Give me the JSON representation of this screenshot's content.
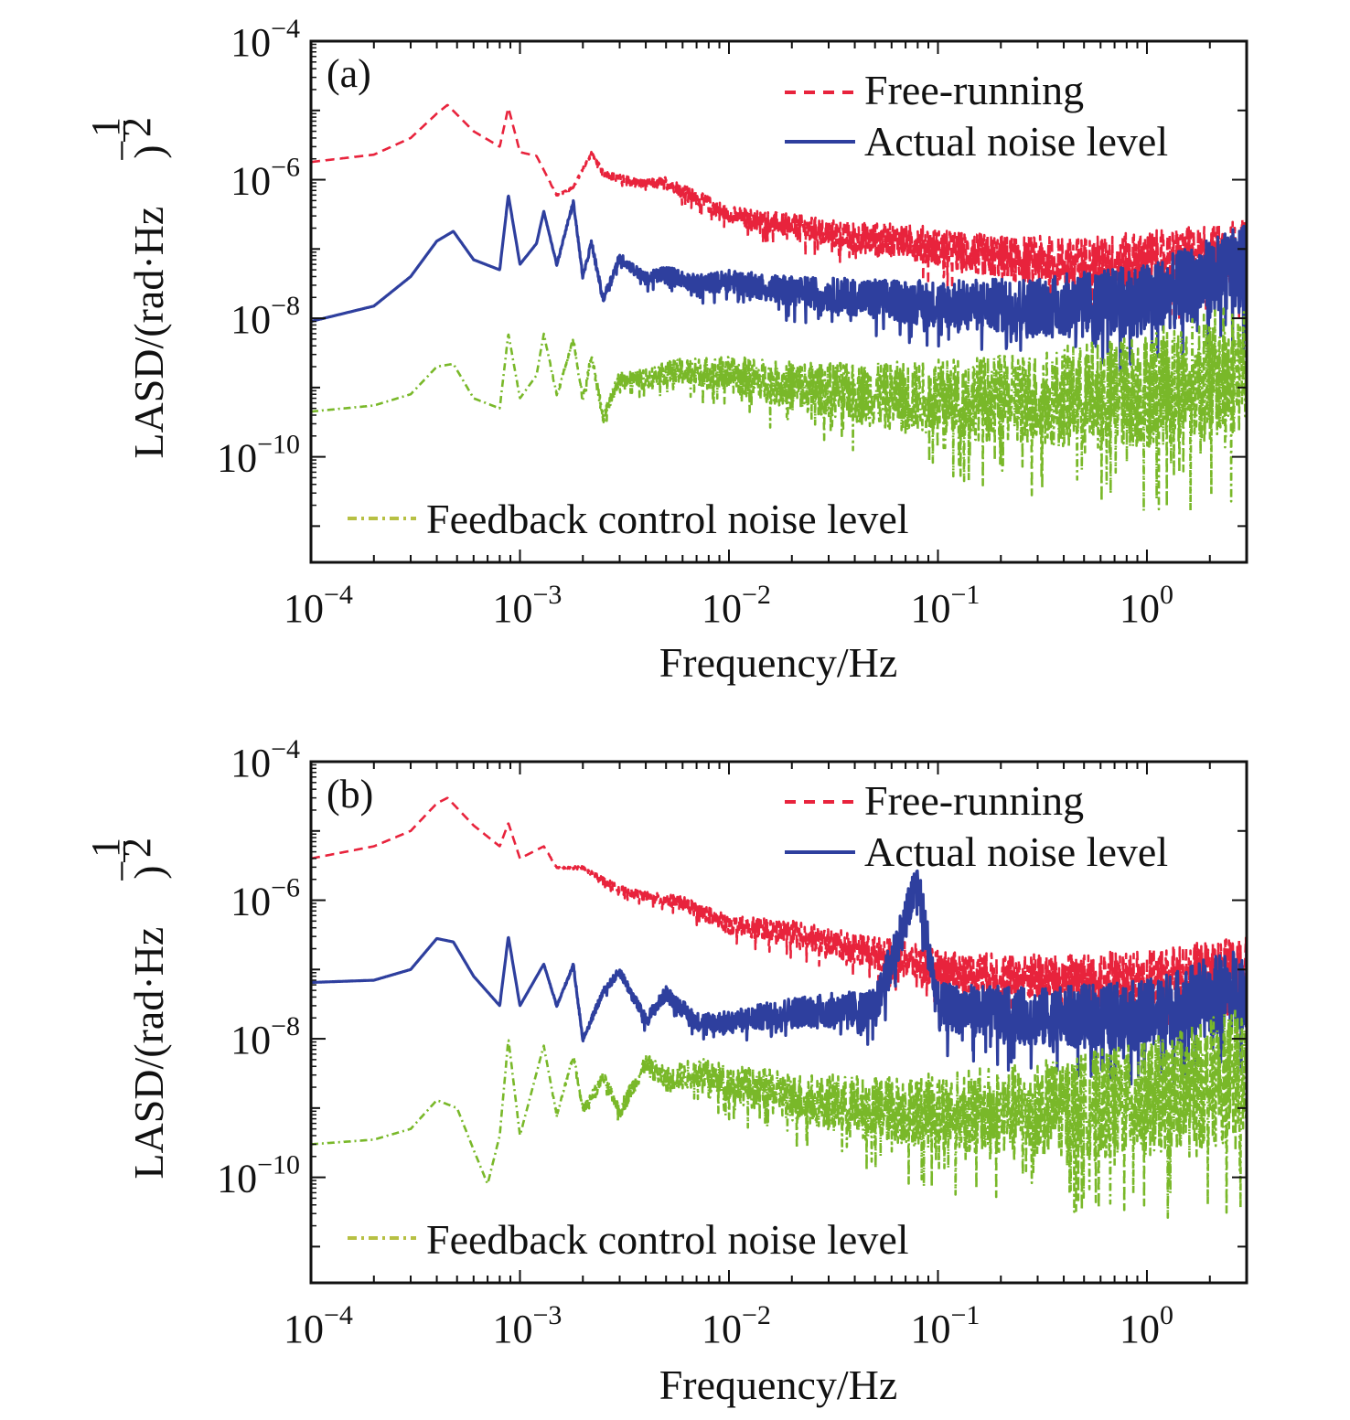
{
  "chart_data": [
    {
      "type": "line",
      "panel_label": "(a)",
      "xlabel": "Frequency/Hz",
      "ylabel": "LASD/(rad·Hz^(-1/2))",
      "xscale": "log",
      "yscale": "log",
      "xlim": [
        0.0001,
        3
      ],
      "ylim": [
        3e-12,
        0.0001
      ],
      "xticks": [
        0.0001,
        0.001,
        0.01,
        0.1,
        1
      ],
      "yticks": [
        0.0001,
        1e-06,
        1e-08,
        1e-10
      ],
      "legend_position": "top-right (Free-running, Actual noise level); bottom-left (Feedback control noise level)",
      "series": [
        {
          "name": "Free-running",
          "style": "dashed",
          "color": "#e8233c",
          "x": [
            0.0001,
            0.0002,
            0.0003,
            0.0004,
            0.00045,
            0.0006,
            0.0008,
            0.00088,
            0.001,
            0.0012,
            0.0015,
            0.0018,
            0.0022,
            0.0025,
            0.003,
            0.004,
            0.005,
            0.007,
            0.01,
            0.02,
            0.04,
            0.08,
            0.1,
            0.2,
            0.5,
            1,
            3
          ],
          "y": [
            1.8e-06,
            2.3e-06,
            4e-06,
            9e-06,
            1.2e-05,
            5e-06,
            3e-06,
            1.1e-05,
            2.5e-06,
            2.2e-06,
            6e-07,
            8e-07,
            2.5e-06,
            1.3e-06,
            1.1e-06,
            9e-07,
            1e-06,
            6e-07,
            3.5e-07,
            2.5e-07,
            1.8e-07,
            1.6e-07,
            1.3e-07,
            1e-07,
            9e-08,
            1e-07,
            1.4e-07
          ]
        },
        {
          "name": "Actual noise level",
          "style": "solid",
          "color": "#2e3f9e",
          "x": [
            0.0001,
            0.0002,
            0.0003,
            0.0004,
            0.00048,
            0.0006,
            0.0008,
            0.00088,
            0.001,
            0.0012,
            0.0013,
            0.0015,
            0.0018,
            0.002,
            0.0022,
            0.0025,
            0.003,
            0.004,
            0.005,
            0.007,
            0.01,
            0.02,
            0.05,
            0.1,
            0.3,
            1,
            3
          ],
          "y": [
            9e-09,
            1.5e-08,
            4e-08,
            1.3e-07,
            1.8e-07,
            7e-08,
            5e-08,
            6e-07,
            6e-08,
            1.2e-07,
            3.5e-07,
            6e-08,
            5e-07,
            4e-08,
            1.3e-07,
            2e-08,
            8e-08,
            4e-08,
            5e-08,
            3.5e-08,
            4e-08,
            3e-08,
            2.5e-08,
            2.2e-08,
            2.2e-08,
            3e-08,
            1e-07
          ]
        },
        {
          "name": "Feedback control noise level",
          "style": "dash-dot",
          "color": "#79b829",
          "x": [
            0.0001,
            0.0002,
            0.0003,
            0.0004,
            0.00048,
            0.0006,
            0.0008,
            0.00088,
            0.001,
            0.0012,
            0.0013,
            0.0015,
            0.0018,
            0.002,
            0.0022,
            0.0025,
            0.003,
            0.004,
            0.005,
            0.007,
            0.01,
            0.02,
            0.05,
            0.1,
            0.3,
            1,
            3
          ],
          "y": [
            4.5e-10,
            5.5e-10,
            8e-10,
            2e-09,
            2.2e-09,
            7e-10,
            5e-10,
            6e-09,
            7e-10,
            1.5e-09,
            6e-09,
            8e-10,
            5e-09,
            7e-10,
            3e-09,
            4e-10,
            1.5e-09,
            1.5e-09,
            2e-09,
            2e-09,
            2e-09,
            1.5e-09,
            1.2e-09,
            1.2e-09,
            1.3e-09,
            2e-09,
            5e-09
          ]
        }
      ]
    },
    {
      "type": "line",
      "panel_label": "(b)",
      "xlabel": "Frequency/Hz",
      "ylabel": "LASD/(rad·Hz^(-1/2))",
      "xscale": "log",
      "yscale": "log",
      "xlim": [
        0.0001,
        3
      ],
      "ylim": [
        3e-12,
        0.0001
      ],
      "xticks": [
        0.0001,
        0.001,
        0.01,
        0.1,
        1
      ],
      "yticks": [
        0.0001,
        1e-06,
        1e-08,
        1e-10
      ],
      "legend_position": "top-right (Free-running, Actual noise level); bottom-left (Feedback control noise level)",
      "series": [
        {
          "name": "Free-running",
          "style": "dashed",
          "color": "#e8233c",
          "x": [
            0.0001,
            0.0002,
            0.0003,
            0.0004,
            0.00045,
            0.0006,
            0.0008,
            0.00088,
            0.001,
            0.0013,
            0.0015,
            0.002,
            0.003,
            0.004,
            0.006,
            0.01,
            0.02,
            0.04,
            0.08,
            0.1,
            0.2,
            0.5,
            1,
            3
          ],
          "y": [
            4e-06,
            6e-06,
            1e-05,
            2.5e-05,
            3e-05,
            1.2e-05,
            6e-06,
            1.3e-05,
            4e-06,
            6e-06,
            3e-06,
            3e-06,
            1.5e-06,
            1.2e-06,
            1e-06,
            5e-07,
            4e-07,
            2.5e-07,
            1.6e-07,
            1.3e-07,
            1.1e-07,
            1e-07,
            1.1e-07,
            1.5e-07
          ]
        },
        {
          "name": "Actual noise level",
          "style": "solid",
          "color": "#2e3f9e",
          "x": [
            0.0001,
            0.0002,
            0.0003,
            0.0004,
            0.00048,
            0.0006,
            0.0008,
            0.00088,
            0.001,
            0.0013,
            0.0015,
            0.0018,
            0.002,
            0.0025,
            0.003,
            0.004,
            0.005,
            0.007,
            0.01,
            0.02,
            0.05,
            0.08,
            0.1,
            0.3,
            1,
            3
          ],
          "y": [
            6.5e-08,
            7e-08,
            1e-07,
            2.8e-07,
            2.5e-07,
            8e-08,
            3e-08,
            3e-07,
            3e-08,
            1.2e-07,
            3e-08,
            1.2e-07,
            1e-08,
            5e-08,
            1e-07,
            2e-08,
            5e-08,
            2e-08,
            2e-08,
            3e-08,
            3.5e-08,
            2.5e-06,
            4e-08,
            3e-08,
            3.5e-08,
            1e-07
          ]
        },
        {
          "name": "Feedback control noise level",
          "style": "dash-dot",
          "color": "#79b829",
          "x": [
            0.0001,
            0.0002,
            0.0003,
            0.0004,
            0.0005,
            0.0006,
            0.0007,
            0.0008,
            0.00088,
            0.001,
            0.0013,
            0.0015,
            0.0018,
            0.002,
            0.0025,
            0.003,
            0.004,
            0.005,
            0.007,
            0.01,
            0.02,
            0.05,
            0.1,
            0.3,
            1,
            3
          ],
          "y": [
            3e-10,
            3.5e-10,
            5e-10,
            1.3e-09,
            1e-09,
            2.5e-10,
            8e-11,
            4e-10,
            1e-08,
            4e-10,
            8e-09,
            8e-10,
            6e-09,
            1e-09,
            3e-09,
            1e-09,
            5e-09,
            3e-09,
            4e-09,
            3e-09,
            2e-09,
            1.5e-09,
            1.5e-09,
            1.8e-09,
            3e-09,
            8e-09
          ]
        }
      ]
    }
  ],
  "legend": {
    "free_running": "Free-running",
    "actual_noise": "Actual noise level",
    "feedback_noise": "Feedback control noise level"
  },
  "axes": {
    "xlabel": "Frequency/Hz",
    "ylabel_main": "LASD/(rad·Hz",
    "ylabel_exp_num": "1",
    "ylabel_exp_den": "2",
    "ylabel_close": ")",
    "xtick_base": "10",
    "xtick_exps": [
      "−4",
      "−3",
      "−2",
      "−1",
      "0"
    ],
    "ytick_base": "10",
    "ytick_exps": [
      "−4",
      "−6",
      "−8",
      "−10"
    ]
  },
  "colors": {
    "free_running": "#e8233c",
    "actual_noise": "#2e3f9e",
    "feedback_noise": "#79b829",
    "feedback_line": "#b7c043"
  }
}
